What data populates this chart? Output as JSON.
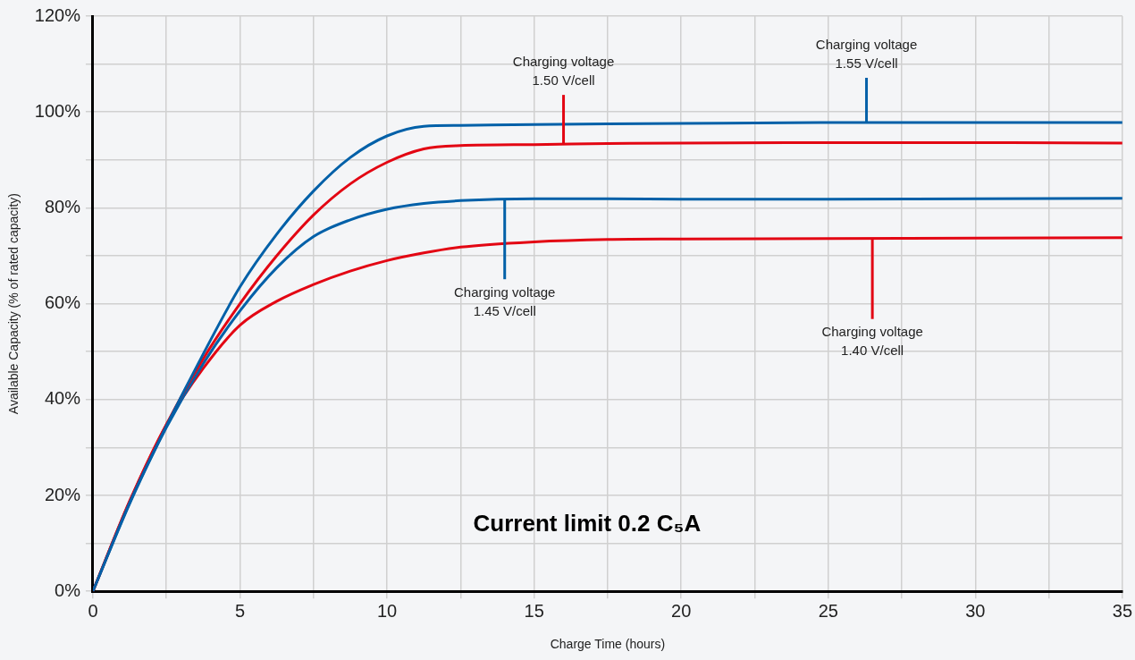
{
  "chart_data": {
    "type": "line",
    "xlabel": "Charge Time (hours)",
    "ylabel": "Available Capacity (% of rated capacity)",
    "x": [
      0,
      1.25,
      2.5,
      3.75,
      5,
      6.25,
      7.5,
      8.75,
      10,
      11.25,
      12.5,
      15,
      17.5,
      20,
      25,
      30,
      35
    ],
    "series": [
      {
        "color": "#0060a8",
        "values": [
          0,
          18.5,
          34.5,
          49.5,
          63.5,
          74.5,
          83.5,
          90.5,
          95,
          97,
          97.2,
          97.4,
          97.5,
          97.6,
          97.8,
          97.8,
          97.8
        ]
      },
      {
        "color": "#e30613",
        "values": [
          0,
          18.8,
          34.8,
          48.5,
          60,
          70,
          78.5,
          85,
          89.5,
          92.3,
          93,
          93.2,
          93.4,
          93.5,
          93.6,
          93.6,
          93.5
        ]
      },
      {
        "color": "#0060a8",
        "values": [
          0,
          18.3,
          34.2,
          47.5,
          58.5,
          67.5,
          74,
          77.5,
          79.7,
          80.9,
          81.5,
          81.9,
          81.9,
          81.8,
          81.8,
          81.9,
          82
        ]
      },
      {
        "color": "#e30613",
        "values": [
          0,
          18.8,
          34.8,
          46.5,
          55.5,
          60.5,
          64,
          66.8,
          69,
          70.6,
          71.8,
          72.9,
          73.4,
          73.5,
          73.6,
          73.7,
          73.8
        ]
      }
    ],
    "xlim": [
      0,
      35
    ],
    "xticks": [
      0,
      {
        "value": 2.5,
        "label": null
      },
      5,
      {
        "value": 7.5,
        "label": null
      },
      10,
      {
        "value": 12.5,
        "label": null
      },
      15,
      {
        "value": 17.5,
        "label": null
      },
      20,
      {
        "value": 22.5,
        "label": null
      },
      25,
      {
        "value": 27.5,
        "label": null
      },
      30,
      {
        "value": 32.5,
        "label": null
      },
      35
    ],
    "ylim": [
      0,
      120
    ],
    "yticks": [
      {
        "value": 0,
        "label": "0%"
      },
      {
        "value": 10,
        "label": null
      },
      {
        "value": 20,
        "label": "20%"
      },
      {
        "value": 30,
        "label": null
      },
      {
        "value": 40,
        "label": "40%"
      },
      {
        "value": 50,
        "label": null
      },
      {
        "value": 60,
        "label": "60%"
      },
      {
        "value": 70,
        "label": null
      },
      {
        "value": 80,
        "label": "80%"
      },
      {
        "value": 90,
        "label": null
      },
      {
        "value": 100,
        "label": "100%"
      },
      {
        "value": 110,
        "label": null
      },
      {
        "value": 120,
        "label": "120%"
      }
    ],
    "grid": true,
    "legend": false,
    "marker": "none",
    "line_style": "solid",
    "annotations": [
      {
        "text": "Charging voltage\n1.50 V/cell",
        "x": 16,
        "y": 93.3
      },
      {
        "text": "Charging voltage\n1.55 V/cell",
        "x": 26.3,
        "y": 97.8
      },
      {
        "text": "Charging voltage\n1.45 V/cell",
        "x": 14,
        "y": 81.9
      },
      {
        "text": "Charging voltage\n1.40 V/cell",
        "x": 26.5,
        "y": 73.6
      },
      "Current limit 0.2 C₅A"
    ]
  }
}
